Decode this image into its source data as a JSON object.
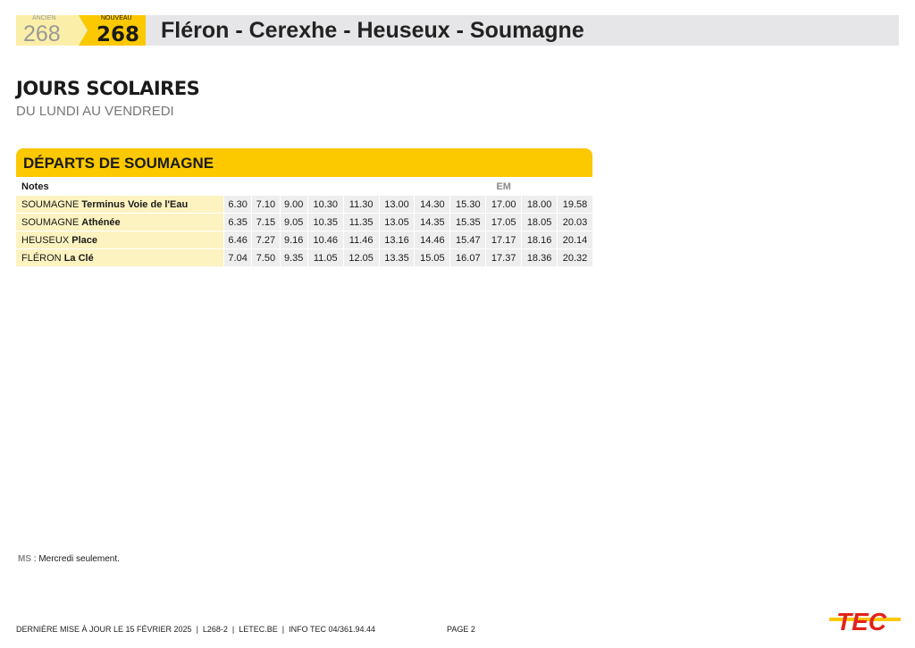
{
  "header": {
    "old_label": "ANCIEN",
    "old_number": "268",
    "new_label": "NOUVEAU",
    "new_number": "268",
    "title": "Fléron - Cerexhe - Heuseux - Soumagne"
  },
  "section": {
    "title": "JOURS SCOLAIRES",
    "subtitle": "DU LUNDI AU VENDREDI"
  },
  "timetable": {
    "title": "DÉPARTS DE SOUMAGNE",
    "notes_label": "Notes",
    "notes": [
      "",
      "",
      "",
      "",
      "",
      "",
      "",
      "",
      "EM",
      "",
      ""
    ],
    "rows": [
      {
        "town": "SOUMAGNE",
        "stop": "Terminus Voie de l'Eau",
        "times": [
          "6.30",
          "7.10",
          "9.00",
          "10.30",
          "11.30",
          "13.00",
          "14.30",
          "15.30",
          "17.00",
          "18.00",
          "19.58"
        ]
      },
      {
        "town": "SOUMAGNE",
        "stop": "Athénée",
        "times": [
          "6.35",
          "7.15",
          "9.05",
          "10.35",
          "11.35",
          "13.05",
          "14.35",
          "15.35",
          "17.05",
          "18.05",
          "20.03"
        ]
      },
      {
        "town": "HEUSEUX",
        "stop": "Place",
        "times": [
          "6.46",
          "7.27",
          "9.16",
          "10.46",
          "11.46",
          "13.16",
          "14.46",
          "15.47",
          "17.17",
          "18.16",
          "20.14"
        ]
      },
      {
        "town": "FLÉRON",
        "stop": "La Clé",
        "times": [
          "7.04",
          "7.50",
          "9.35",
          "11.05",
          "12.05",
          "13.35",
          "15.05",
          "16.07",
          "17.37",
          "18.36",
          "20.32"
        ]
      }
    ]
  },
  "footnote": {
    "code": "MS",
    "text": " : Mercredi seulement."
  },
  "footer": {
    "info": "DERNIÈRE MISE À JOUR LE 15 FÉVRIER 2025  |  L268-2  |  LETEC.BE  |  INFO TEC 04/361.94.44",
    "page": "PAGE 2",
    "logo": "TEC"
  },
  "colors": {
    "brand_yellow": "#fcc800",
    "light_yellow": "#fdf3c0",
    "logo_red": "#e2231a"
  }
}
